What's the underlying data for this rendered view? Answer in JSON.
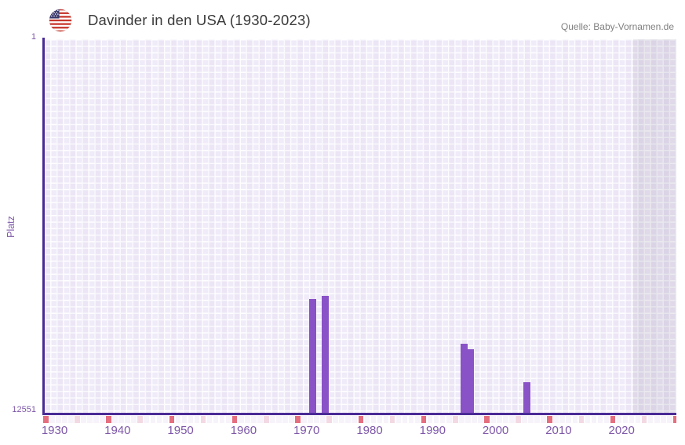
{
  "header": {
    "title": "Davinder in den USA (1930-2023)",
    "flag_icon": "us-flag-icon",
    "source": "Quelle: Baby-Vornamen.de"
  },
  "chart_data": {
    "type": "bar",
    "title": "Davinder in den USA (1930-2023)",
    "xlabel": "",
    "ylabel": "Platz",
    "y_axis": {
      "top_tick_label": "1",
      "bottom_tick_label": "12551",
      "min": 1,
      "max": 12551,
      "inverted": true
    },
    "x_axis": {
      "ticks": [
        1930,
        1940,
        1950,
        1960,
        1970,
        1980,
        1990,
        2000,
        2010,
        2020
      ],
      "range_start": 1930,
      "range_end": 2030,
      "data_end": 2023,
      "decade_marker_interval": 10,
      "half_decade_marker_interval": 5
    },
    "series": [
      {
        "name": "Platz",
        "points": [
          {
            "year": 1971,
            "rank": 8700
          },
          {
            "year": 1973,
            "rank": 8600
          },
          {
            "year": 1995,
            "rank": 10200
          },
          {
            "year": 1996,
            "rank": 10400
          },
          {
            "year": 2005,
            "rank": 11500
          }
        ]
      }
    ],
    "legend": "off",
    "grid": "checkered",
    "colors": {
      "bar": "#8a52c7",
      "axis_line": "#4a2b96",
      "grid_cell": "#f0ebf8",
      "future_band_overlay": "rgba(108,102,128,0.13)",
      "tick_label": "#7d57a8",
      "strip_base": "#f7f3fa",
      "strip_decade": "#e56e7f",
      "strip_half_decade": "#f3d9e3",
      "title_text": "#3a3a3a",
      "source_text": "#808080"
    }
  }
}
